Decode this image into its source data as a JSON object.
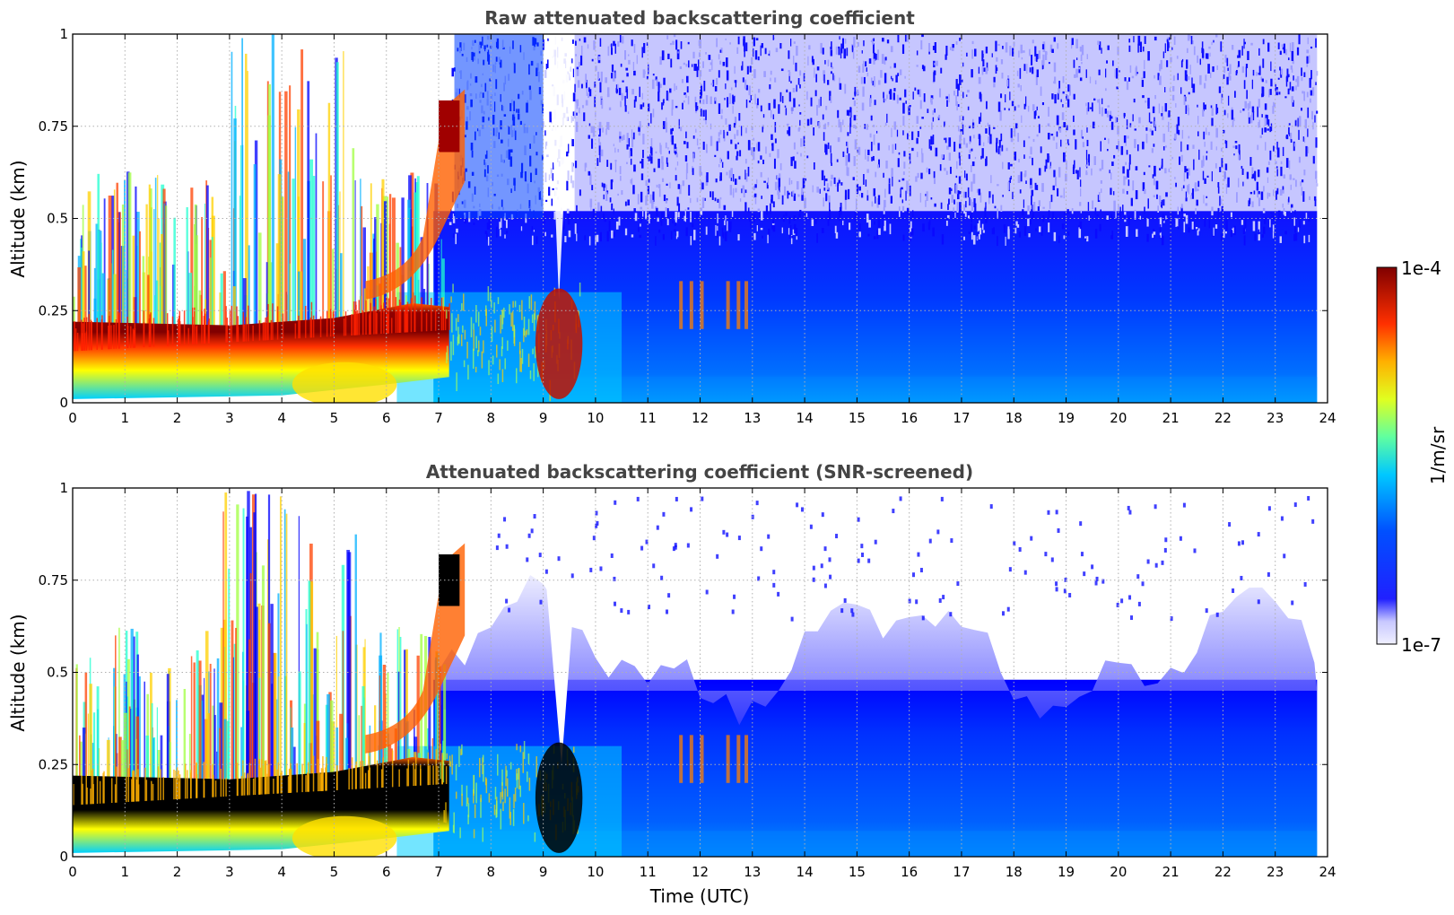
{
  "chart_data": [
    {
      "type": "heatmap",
      "title": "Raw attenuated backscattering coefficient",
      "xlabel": "",
      "ylabel": "Altitude (km)",
      "xlim": [
        0,
        24
      ],
      "ylim": [
        0,
        1
      ],
      "x_ticks": [
        "0",
        "1",
        "2",
        "3",
        "4",
        "5",
        "6",
        "7",
        "8",
        "9",
        "10",
        "11",
        "12",
        "13",
        "14",
        "15",
        "16",
        "17",
        "18",
        "19",
        "20",
        "21",
        "22",
        "23",
        "24"
      ],
      "y_ticks": [
        "0",
        "0.25",
        "0.5",
        "0.75",
        "1"
      ],
      "grid": true,
      "screened": false,
      "data_extent_hours": [
        0,
        23.8
      ],
      "features": [
        {
          "name": "boundary-layer aerosol",
          "time_range": [
            0,
            7.2
          ],
          "altitude_range": [
            0.03,
            0.22
          ],
          "level": "1e-4 (saturated)"
        },
        {
          "name": "elevated aerosol layer",
          "time_range": [
            6.5,
            7.5
          ],
          "altitude_range": [
            0.5,
            0.85
          ],
          "level": "high"
        },
        {
          "name": "residual layer",
          "time_range": [
            7,
            23.8
          ],
          "altitude_range": [
            0,
            0.5
          ],
          "level": "low-moderate"
        },
        {
          "name": "fog/cloud patch",
          "time_range": [
            9,
            9.7
          ],
          "altitude_range": [
            0.05,
            0.25
          ],
          "level": "high"
        },
        {
          "name": "small plumes",
          "time_range": [
            11.5,
            12.9
          ],
          "altitude_range": [
            0.22,
            0.32
          ],
          "level": "high"
        }
      ]
    },
    {
      "type": "heatmap",
      "title": "Attenuated backscattering coefficient (SNR-screened)",
      "xlabel": "Time (UTC)",
      "ylabel": "Altitude (km)",
      "xlim": [
        0,
        24
      ],
      "ylim": [
        0,
        1
      ],
      "x_ticks": [
        "0",
        "1",
        "2",
        "3",
        "4",
        "5",
        "6",
        "7",
        "8",
        "9",
        "10",
        "11",
        "12",
        "13",
        "14",
        "15",
        "16",
        "17",
        "18",
        "19",
        "20",
        "21",
        "22",
        "23",
        "24"
      ],
      "y_ticks": [
        "0",
        "0.25",
        "0.5",
        "0.75",
        "1"
      ],
      "grid": true,
      "screened": true,
      "data_extent_hours": [
        0,
        23.8
      ],
      "features": [
        {
          "name": "boundary-layer aerosol (above scale, black)",
          "time_range": [
            0,
            7.2
          ],
          "altitude_range": [
            0.03,
            0.2
          ],
          "level": "above 1e-4"
        },
        {
          "name": "mixed layer top envelope",
          "time_range": [
            7,
            23.8
          ],
          "altitude_range": [
            0.45,
            0.75
          ],
          "level": "low"
        }
      ]
    }
  ],
  "colorbar": {
    "label": "1/m/sr",
    "max_label": "1e-4",
    "min_label": "1e-7",
    "scale": "log",
    "range": [
      1e-07,
      0.0001
    ],
    "colormap": "jet",
    "colors": [
      "#f0f0ff",
      "#0000ff",
      "#0080ff",
      "#00e0ff",
      "#80ff80",
      "#ffff00",
      "#ff8000",
      "#ff0000",
      "#800000"
    ]
  }
}
